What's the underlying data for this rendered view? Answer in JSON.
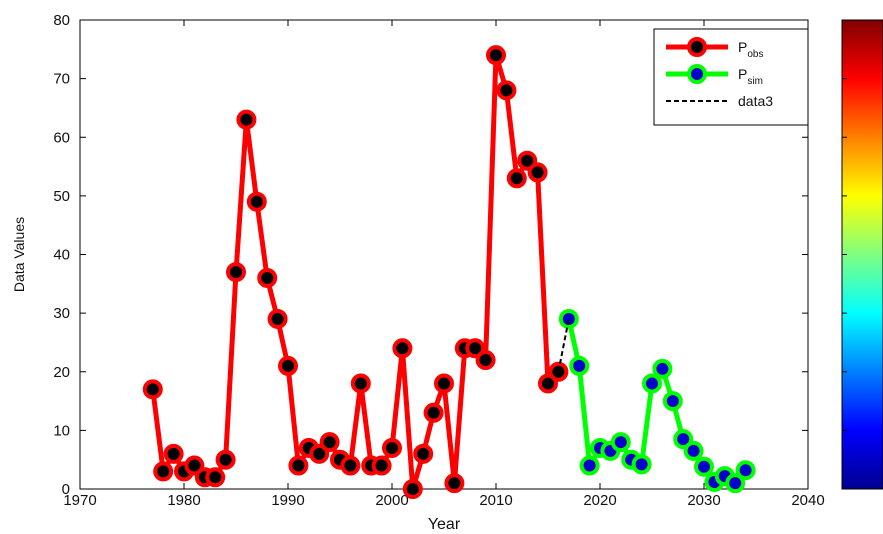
{
  "chart_data": {
    "type": "line",
    "xlabel": "Year",
    "ylabel": "Data Values",
    "xlim": [
      1970,
      2040
    ],
    "ylim": [
      0,
      80
    ],
    "x_ticks": [
      1970,
      1980,
      1990,
      2000,
      2010,
      2020,
      2030,
      2040
    ],
    "y_ticks": [
      0,
      10,
      20,
      30,
      40,
      50,
      60,
      70,
      80
    ],
    "grid": false,
    "legend": {
      "position": "top-right",
      "entries": [
        {
          "base": "P",
          "subscript": "obs",
          "style": "solid-marker",
          "color": "#ff0000",
          "marker_color": "#000000"
        },
        {
          "base": "P",
          "subscript": "sim",
          "style": "solid-marker",
          "color": "#00ff00",
          "marker_color": "#0000cc"
        },
        {
          "base": "data3",
          "subscript": "",
          "style": "dashed",
          "color": "#000000"
        }
      ]
    },
    "colorbar": {
      "position": "right",
      "colormap": "jet"
    },
    "series": [
      {
        "name": "Pobs",
        "color": "#ff0000",
        "marker_color": "#000000",
        "x": [
          1977,
          1978,
          1979,
          1980,
          1981,
          1982,
          1983,
          1984,
          1985,
          1986,
          1987,
          1988,
          1989,
          1990,
          1991,
          1992,
          1993,
          1994,
          1995,
          1996,
          1997,
          1998,
          1999,
          2000,
          2001,
          2002,
          2003,
          2004,
          2005,
          2006,
          2007,
          2008,
          2009,
          2010,
          2011,
          2012,
          2013,
          2014,
          2015,
          2016
        ],
        "y": [
          17,
          3,
          6,
          3,
          4,
          2,
          2,
          5,
          37,
          63,
          49,
          36,
          29,
          21,
          4,
          7,
          6,
          8,
          5,
          4,
          18,
          4,
          4,
          7,
          24,
          0,
          6,
          13,
          18,
          1,
          24,
          24,
          22,
          74,
          68,
          53,
          56,
          54,
          18,
          20
        ]
      },
      {
        "name": "Psim",
        "color": "#00ff00",
        "marker_color": "#0000cc",
        "x": [
          2017,
          2018,
          2019,
          2020,
          2021,
          2022,
          2023,
          2024,
          2025,
          2026,
          2027,
          2028,
          2029,
          2030,
          2031,
          2032,
          2033,
          2034
        ],
        "y": [
          29,
          21,
          4,
          7,
          6.5,
          8,
          5,
          4.2,
          18,
          20.5,
          15,
          8.5,
          6.5,
          3.8,
          1.2,
          2.2,
          1,
          3.2
        ]
      },
      {
        "name": "data3",
        "color": "#000000",
        "dashed": true,
        "x": [
          2016,
          2017
        ],
        "y": [
          20,
          29
        ]
      }
    ]
  }
}
